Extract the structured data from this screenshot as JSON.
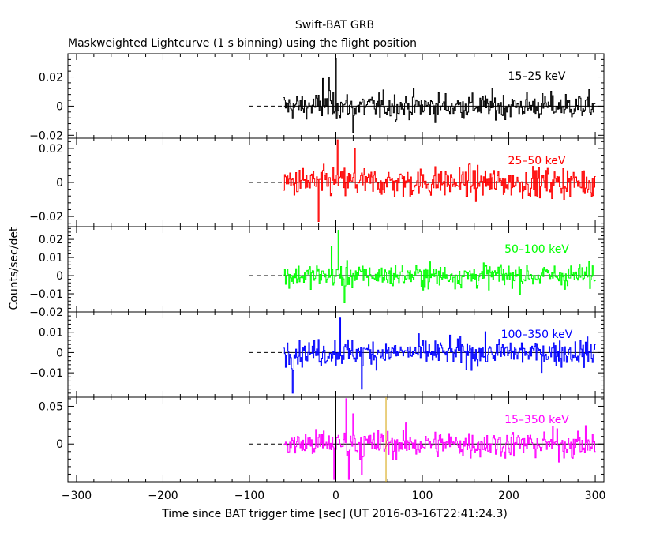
{
  "chart_data": {
    "type": "line",
    "title": "Swift-BAT GRB",
    "subtitle": "Maskweighted Lightcurve (1 s binning) using the flight position",
    "xlabel": "Time since BAT trigger time [sec] (UT 2016-03-16T22:41:24.3)",
    "ylabel": "Counts/sec/det",
    "xlim": [
      -310,
      310
    ],
    "x_ticks": [
      -300,
      -200,
      -100,
      0,
      100,
      200,
      300
    ],
    "x_tick_labels": [
      "−300",
      "−200",
      "−100",
      "0",
      "100",
      "200",
      "300"
    ],
    "data_range": [
      -60,
      300
    ],
    "pre_trigger_dash": [
      -100,
      -62
    ],
    "markers": [
      {
        "x": 0,
        "color": "#00aa00",
        "style": "dashed"
      },
      {
        "x": 0,
        "color": "#000000",
        "style": "solid"
      },
      {
        "x": 58,
        "color": "#d4a000",
        "style": "solid"
      }
    ],
    "panels": [
      {
        "band": "15–25 keV",
        "color": "#000000",
        "ylim": [
          -0.022,
          0.036
        ],
        "y_ticks": [
          -0.02,
          0,
          0.02
        ],
        "y_tick_labels": [
          "−0.02",
          "0",
          "0.02"
        ],
        "noise": 0.0075,
        "spikes": [
          [
            0,
            0.033
          ],
          [
            -8,
            0.02
          ],
          [
            -15,
            0.019
          ],
          [
            20,
            -0.018
          ]
        ]
      },
      {
        "band": "25–50 keV",
        "color": "#ff0000",
        "ylim": [
          -0.026,
          0.026
        ],
        "y_ticks": [
          -0.02,
          0,
          0.02
        ],
        "y_tick_labels": [
          "−0.02",
          "0",
          "0.02"
        ],
        "noise": 0.0075,
        "spikes": [
          [
            2,
            0.025
          ],
          [
            22,
            0.02
          ],
          [
            -20,
            -0.023
          ]
        ]
      },
      {
        "band": "50–100 keV",
        "color": "#00ff00",
        "ylim": [
          -0.02,
          0.027
        ],
        "y_ticks": [
          -0.02,
          -0.01,
          0,
          0.01,
          0.02
        ],
        "y_tick_labels": [
          "−0.02",
          "−0.01",
          "0",
          "0.01",
          "0.02"
        ],
        "noise": 0.0055,
        "spikes": [
          [
            3,
            0.025
          ],
          [
            -5,
            0.016
          ],
          [
            10,
            -0.015
          ]
        ]
      },
      {
        "band": "100–350 keV",
        "color": "#0000ff",
        "ylim": [
          -0.022,
          0.02
        ],
        "y_ticks": [
          -0.01,
          0,
          0.01
        ],
        "y_tick_labels": [
          "−0.01",
          "0",
          "0.01"
        ],
        "noise": 0.0055,
        "spikes": [
          [
            -50,
            -0.02
          ],
          [
            5,
            0.017
          ],
          [
            30,
            -0.018
          ]
        ]
      },
      {
        "band": "15–350 keV",
        "color": "#ff00ff",
        "ylim": [
          -0.05,
          0.062
        ],
        "y_ticks": [
          0,
          0.05
        ],
        "y_tick_labels": [
          "0",
          "0.05"
        ],
        "noise": 0.0155,
        "spikes": [
          [
            12,
            0.06
          ],
          [
            15,
            -0.047
          ],
          [
            -2,
            -0.047
          ],
          [
            20,
            0.04
          ],
          [
            30,
            -0.04
          ]
        ]
      }
    ]
  }
}
